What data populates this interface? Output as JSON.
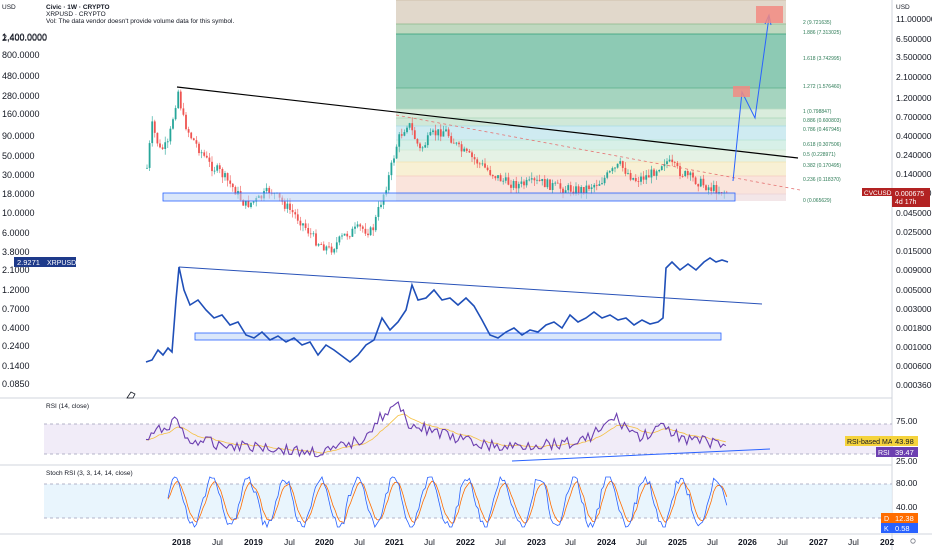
{
  "header": {
    "title": "Civic · 1W · CRYPTO",
    "symbol": "XRPUSD · CRYPTO",
    "volume_note": "Vol: The data vendor doesn't provide volume data for this symbol.",
    "currency_left": "USD",
    "currency_right": "USD"
  },
  "colors": {
    "cvc_line": "#1e3a8a",
    "xrp_line": "#1f4fb8",
    "rsi_line": "#6c3fb0",
    "stoch_k": "#2962ff",
    "stoch_d": "#ff6d00",
    "up_candle": "#26a69a",
    "down_candle": "#ef5350",
    "badge_cvc": "#b22222",
    "badge_xrp": "#1e3a8a",
    "rsi_ma_badge": "#f5d33c",
    "rsi_badge": "#6c3fb0"
  },
  "left_axis": {
    "ticks": [
      "2,400.0000",
      "1,400.0000",
      "800.0000",
      "480.0000",
      "280.0000",
      "160.0000",
      "90.0000",
      "50.0000",
      "30.0000",
      "18.0000",
      "10.0000",
      "6.0000",
      "3.8000",
      "2.1000",
      "1.2000",
      "0.7000",
      "0.4000",
      "0.2400",
      "0.1400",
      "0.0850"
    ]
  },
  "right_axis": {
    "ticks": [
      "11.000000",
      "6.500000",
      "3.500000",
      "2.100000",
      "1.200000",
      "0.700000",
      "0.400000",
      "0.240000",
      "0.140000",
      "0.080000",
      "0.045000",
      "0.025000",
      "0.015000",
      "0.009000",
      "0.005000",
      "0.003000",
      "0.001800",
      "0.001000",
      "0.000600",
      "0.000360"
    ]
  },
  "x_axis": {
    "labels": [
      "2018",
      "Jul",
      "2019",
      "Jul",
      "2020",
      "Jul",
      "2021",
      "Jul",
      "2022",
      "Jul",
      "2023",
      "Jul",
      "2024",
      "Jul",
      "2025",
      "Jul",
      "2026",
      "Jul",
      "2027",
      "Jul",
      "202"
    ]
  },
  "fib": {
    "levels": [
      {
        "label": "2 (9.721635)",
        "color": "#c8b8a0"
      },
      {
        "label": "1.886 (7.313025)",
        "color": "#8ab88a"
      },
      {
        "label": "1.618 (3.742995)",
        "color": "#2f9e77"
      },
      {
        "label": "1.272 (1.576460)",
        "color": "#5bb08a"
      },
      {
        "label": "1 (0.798847)",
        "color": "#b9dcc0"
      },
      {
        "label": "0.886 (0.600803)",
        "color": "#a9d6b8"
      },
      {
        "label": "0.786 (0.467945)",
        "color": "#a8dbe6"
      },
      {
        "label": "0.618 (0.307506)",
        "color": "#b6e3d5"
      },
      {
        "label": "0.5 (0.228971)",
        "color": "#cfe8d0"
      },
      {
        "label": "0.382 (0.170495)",
        "color": "#f3e3b0"
      },
      {
        "label": "0.236 (0.118370)",
        "color": "#f6cdc0"
      },
      {
        "label": "0 (0.065629)",
        "color": "#ead2d6"
      }
    ]
  },
  "badges": {
    "cvc_symbol": "CVCUSD",
    "cvc_price": "0.000675",
    "cvc_countdown": "4d 17h",
    "xrp_price": "2.9271",
    "xrp_symbol": "XRPUSD"
  },
  "rsi": {
    "title": "RSI (14, close)",
    "ticks": [
      "75.00",
      "25.00"
    ],
    "ma_label": "RSI-based MA",
    "ma_value": "43.98",
    "rsi_label": "RSI",
    "rsi_value": "39.47"
  },
  "stoch": {
    "title": "Stoch RSI (3, 3, 14, 14, close)",
    "ticks": [
      "80.00",
      "40.00",
      "20.00"
    ],
    "d_label": "D",
    "d_value": "12.38",
    "k_label": "K",
    "k_value": "0.58"
  },
  "chart_data": [
    {
      "type": "line",
      "title": "Civic · 1W · CRYPTO",
      "series": [
        {
          "name": "XRPUSD",
          "x": [
            "2017-12",
            "2018-01",
            "2018-04",
            "2018-09",
            "2019-03",
            "2019-09",
            "2020-03",
            "2020-08",
            "2020-12",
            "2021-04",
            "2021-09",
            "2022-01",
            "2022-06",
            "2022-09",
            "2023-01",
            "2023-07",
            "2023-12",
            "2024-06",
            "2024-11",
            "2025-01",
            "2025-04",
            "2025-07",
            "2025-08"
          ],
          "values": [
            0.25,
            0.3,
            2.7,
            0.55,
            0.35,
            0.28,
            0.18,
            0.3,
            0.22,
            1.4,
            1.2,
            0.9,
            0.35,
            0.45,
            0.38,
            0.5,
            0.6,
            0.5,
            1.5,
            2.5,
            2.2,
            3.3,
            2.9
          ]
        }
      ],
      "ylabel": "USD",
      "yscale": "log"
    },
    {
      "type": "line",
      "title": "RSI (14, close)",
      "series": [
        {
          "name": "RSI",
          "last": 39.47
        },
        {
          "name": "RSI-based MA",
          "last": 43.98
        }
      ],
      "y_ticks": [
        75,
        25
      ]
    },
    {
      "type": "line",
      "title": "Stoch RSI (3, 3, 14, 14, close)",
      "series": [
        {
          "name": "K",
          "last": 0.58
        },
        {
          "name": "D",
          "last": 12.38
        }
      ],
      "y_ticks": [
        80,
        40,
        20
      ]
    }
  ]
}
